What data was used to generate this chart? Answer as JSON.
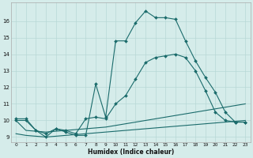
{
  "xlabel": "Humidex (Indice chaleur)",
  "bg_color": "#d5ecea",
  "grid_color": "#b8d8d6",
  "line_color": "#1a6b6b",
  "series": [
    {
      "x": [
        0,
        1,
        2,
        3,
        4,
        5,
        6,
        7,
        8,
        9,
        10,
        11,
        12,
        13,
        14,
        15,
        16,
        17,
        18,
        19,
        20,
        21,
        22,
        23
      ],
      "y": [
        10.1,
        10.1,
        9.4,
        9.0,
        9.5,
        9.3,
        9.1,
        9.1,
        12.2,
        10.2,
        14.8,
        14.8,
        15.9,
        16.6,
        16.2,
        16.2,
        16.1,
        14.8,
        13.6,
        12.6,
        11.7,
        10.5,
        9.9,
        9.9
      ],
      "marker": true
    },
    {
      "x": [
        0,
        1,
        2,
        3,
        4,
        5,
        6,
        7,
        8,
        9,
        10,
        11,
        12,
        13,
        14,
        15,
        16,
        17,
        18,
        19,
        20,
        21,
        22,
        23
      ],
      "y": [
        10.0,
        10.0,
        9.4,
        9.2,
        9.5,
        9.4,
        9.2,
        10.1,
        10.2,
        10.1,
        11.0,
        11.5,
        12.5,
        13.5,
        13.8,
        13.9,
        14.0,
        13.8,
        13.0,
        11.8,
        10.5,
        10.0,
        9.9,
        9.9
      ],
      "marker": true
    },
    {
      "x": [
        0,
        1,
        2,
        3,
        4,
        5,
        6,
        7,
        8,
        9,
        10,
        11,
        12,
        13,
        14,
        15,
        16,
        17,
        18,
        19,
        20,
        21,
        22,
        23
      ],
      "y": [
        10.0,
        9.4,
        9.35,
        9.3,
        9.35,
        9.4,
        9.45,
        9.5,
        9.55,
        9.6,
        9.7,
        9.8,
        9.9,
        10.0,
        10.1,
        10.2,
        10.3,
        10.4,
        10.5,
        10.6,
        10.7,
        10.8,
        10.9,
        11.0
      ],
      "marker": false
    },
    {
      "x": [
        0,
        1,
        2,
        3,
        4,
        5,
        6,
        7,
        8,
        9,
        10,
        11,
        12,
        13,
        14,
        15,
        16,
        17,
        18,
        19,
        20,
        21,
        22,
        23
      ],
      "y": [
        9.2,
        9.1,
        9.05,
        9.0,
        9.05,
        9.1,
        9.15,
        9.2,
        9.25,
        9.3,
        9.35,
        9.4,
        9.45,
        9.5,
        9.55,
        9.6,
        9.65,
        9.7,
        9.75,
        9.8,
        9.85,
        9.9,
        9.95,
        10.0
      ],
      "marker": false
    }
  ],
  "xlim": [
    -0.5,
    23.5
  ],
  "ylim": [
    8.7,
    17.1
  ],
  "yticks": [
    9,
    10,
    11,
    12,
    13,
    14,
    15,
    16
  ],
  "xticks": [
    0,
    1,
    2,
    3,
    4,
    5,
    6,
    7,
    8,
    9,
    10,
    11,
    12,
    13,
    14,
    15,
    16,
    17,
    18,
    19,
    20,
    21,
    22,
    23
  ]
}
